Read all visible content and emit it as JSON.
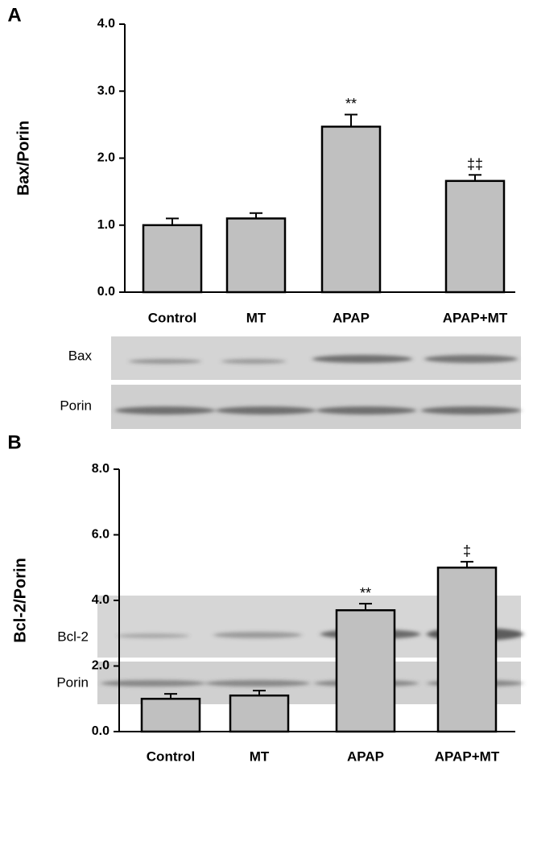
{
  "chart_data": [
    {
      "type": "bar",
      "panel": "A",
      "ylabel": "Bax/Porin",
      "categories": [
        "Control",
        "MT",
        "APAP",
        "APAP+MT"
      ],
      "values": [
        1.0,
        1.1,
        2.47,
        1.66
      ],
      "errors": [
        0.1,
        0.08,
        0.18,
        0.09
      ],
      "annotations": [
        null,
        null,
        "**",
        "‡‡"
      ],
      "color": "#c0c0c0",
      "ylim": [
        0,
        4
      ],
      "yticks": [
        {
          "value": 0,
          "label": "0.0"
        },
        {
          "value": 1,
          "label": "1.0"
        },
        {
          "value": 2,
          "label": "2.0"
        },
        {
          "value": 3,
          "label": "3.0"
        },
        {
          "value": 4,
          "label": "4.0"
        }
      ],
      "blot_labels": [
        "Bax",
        "Porin"
      ]
    },
    {
      "type": "bar",
      "panel": "B",
      "ylabel": "Bcl-2/Porin",
      "categories": [
        "Control",
        "MT",
        "APAP",
        "APAP+MT"
      ],
      "values": [
        1.0,
        1.1,
        3.7,
        5.0
      ],
      "errors": [
        0.15,
        0.15,
        0.2,
        0.18
      ],
      "annotations": [
        null,
        null,
        "**",
        "‡"
      ],
      "color": "#c0c0c0",
      "ylim": [
        0,
        8
      ],
      "yticks": [
        {
          "value": 0,
          "label": "0.0"
        },
        {
          "value": 2,
          "label": "2.0"
        },
        {
          "value": 4,
          "label": "4.0"
        },
        {
          "value": 6,
          "label": "6.0"
        },
        {
          "value": 8,
          "label": "8.0"
        }
      ],
      "blot_labels": [
        "Bcl-2",
        "Porin"
      ]
    }
  ]
}
